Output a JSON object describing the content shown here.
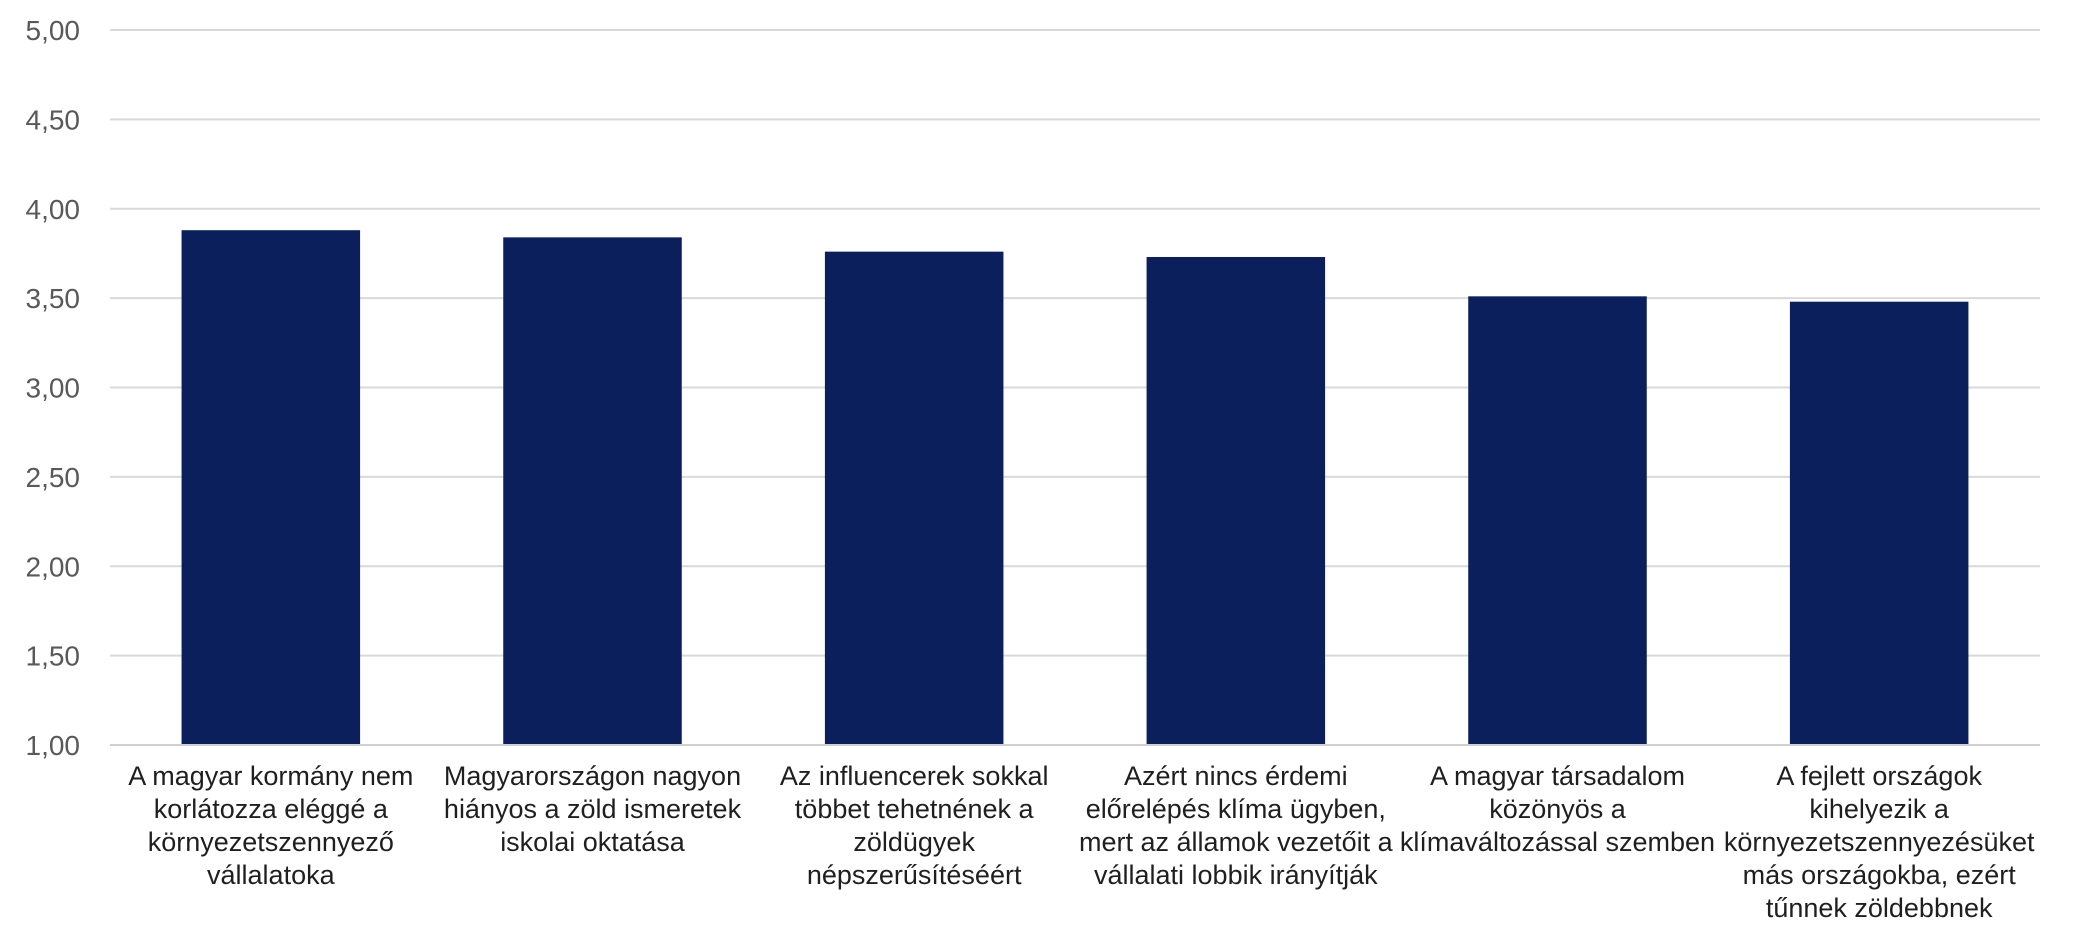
{
  "chart_data": {
    "type": "bar",
    "title": "",
    "xlabel": "",
    "ylabel": "",
    "ylim": [
      1.0,
      5.0
    ],
    "yticks": [
      "1,00",
      "1,50",
      "2,00",
      "2,50",
      "3,00",
      "3,50",
      "4,00",
      "4,50",
      "5,00"
    ],
    "grid": true,
    "bar_color": "#0a1f5c",
    "categories": [
      "A magyar kormány nem korlátozza eléggé a környezetszennyező vállalatoka",
      "Magyarországon nagyon hiányos a zöld ismeretek iskolai oktatása",
      "Az influencerek sokkal többet tehetnének a zöldügyek népszerűsítéséért",
      "Azért nincs érdemi előrelépés klíma ügyben, mert az államok vezetőit a vállalati lobbik irányítják",
      "A magyar társadalom közönyös a klímaváltozással szemben",
      "A fejlett országok kihelyezik a környezetszennyezésüket más országokba, ezért tűnnek zöldebbnek"
    ],
    "values": [
      3.88,
      3.84,
      3.76,
      3.73,
      3.51,
      3.48
    ]
  }
}
